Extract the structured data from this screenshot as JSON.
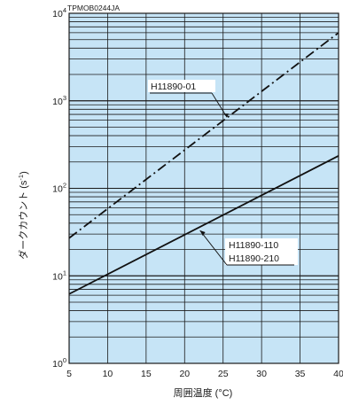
{
  "chart_data": {
    "type": "line",
    "figure_code": "TPMOB0244JA",
    "xlabel": "周囲温度 (°C)",
    "ylabel": "ダークカウント (s",
    "ylabel_sup": "-1",
    "ylabel_close": ")",
    "x_ticks": [
      "5",
      "10",
      "15",
      "20",
      "25",
      "30",
      "35",
      "40"
    ],
    "y_ticks": [
      {
        "base": "10",
        "exp": "0"
      },
      {
        "base": "10",
        "exp": "1"
      },
      {
        "base": "10",
        "exp": "2"
      },
      {
        "base": "10",
        "exp": "3"
      },
      {
        "base": "10",
        "exp": "4"
      }
    ],
    "xlim": [
      5,
      40
    ],
    "ylim": [
      1,
      10000
    ],
    "y_scale": "log",
    "grid": true,
    "plot_background": "#c6e4f6",
    "series": [
      {
        "name": "H11890-01",
        "style": "dash-dot",
        "x": [
          5,
          40
        ],
        "y": [
          27,
          6000
        ],
        "label_anchor": {
          "x": 25.5,
          "y": 650
        }
      },
      {
        "name": "H11890-110",
        "name2": "H11890-210",
        "style": "solid",
        "x": [
          5,
          40
        ],
        "y": [
          6.2,
          235
        ],
        "label_anchor": {
          "x": 22,
          "y": 33
        }
      }
    ]
  }
}
